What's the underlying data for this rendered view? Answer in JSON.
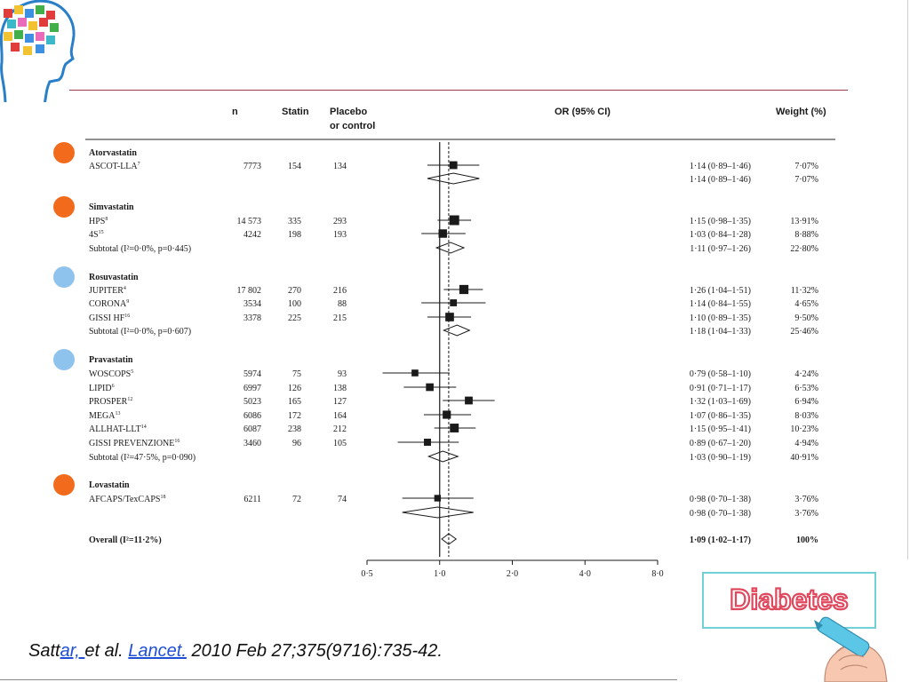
{
  "colors": {
    "bullet_orange": "#f26a1b",
    "bullet_blue": "#8ec3ee",
    "diabetes_pink": "#e0485e",
    "board_border": "#6fd0d8",
    "marker_cyan": "#5cc6e6",
    "rule": "#9b3b4d"
  },
  "icons": {
    "logo": "head-puzzle-icon",
    "diabetes": "diabetes-marker-illustration"
  },
  "citation": {
    "pre": "Satt",
    "link1": "ar, ",
    "mid": "et al. ",
    "link2": "Lancet.",
    "post": " 2010 Feb 27;375(9716):735-42."
  },
  "diabetes_label": "Diabetes",
  "chart_data": {
    "type": "forest",
    "columns": {
      "n": "n",
      "statin": "Statin",
      "placebo1": "Placebo",
      "placebo2": "or control",
      "or": "OR (95% CI)",
      "weight": "Weight (%)"
    },
    "x_axis": {
      "scale": "log",
      "ticks": [
        0.5,
        1.0,
        2.0,
        4.0,
        8.0
      ],
      "tick_labels": [
        "0·5",
        "1·0",
        "2·0",
        "4·0",
        "8·0"
      ],
      "reference": 1.0,
      "overall_dashed": 1.09
    },
    "rows": [
      {
        "type": "group",
        "label": "Atorvastatin",
        "bullet": "orange"
      },
      {
        "type": "study",
        "label": "ASCOT-LLA",
        "sup": "7",
        "n": "7773",
        "statin": "154",
        "placebo": "134",
        "or": 1.14,
        "lo": 0.89,
        "hi": 1.46,
        "ci": "1·14 (0·89–1·46)",
        "weight": "7·07%",
        "w": 7.07
      },
      {
        "type": "subtotal",
        "label": "",
        "or": 1.14,
        "lo": 0.89,
        "hi": 1.46,
        "ci": "1·14 (0·89–1·46)",
        "weight": "7·07%"
      },
      {
        "type": "group",
        "label": "Simvastatin",
        "bullet": "orange"
      },
      {
        "type": "study",
        "label": "HPS",
        "sup": "8",
        "n": "14 573",
        "statin": "335",
        "placebo": "293",
        "or": 1.15,
        "lo": 0.98,
        "hi": 1.35,
        "ci": "1·15 (0·98–1·35)",
        "weight": "13·91%",
        "w": 13.91
      },
      {
        "type": "study",
        "label": "4S",
        "sup": "15",
        "n": "4242",
        "statin": "198",
        "placebo": "193",
        "or": 1.03,
        "lo": 0.84,
        "hi": 1.28,
        "ci": "1·03 (0·84–1·28)",
        "weight": "8·88%",
        "w": 8.88
      },
      {
        "type": "subtotal",
        "label": "Subtotal (I²=0·0%, p=0·445)",
        "or": 1.11,
        "lo": 0.97,
        "hi": 1.26,
        "ci": "1·11 (0·97–1·26)",
        "weight": "22·80%"
      },
      {
        "type": "group",
        "label": "Rosuvastatin",
        "bullet": "blue"
      },
      {
        "type": "study",
        "label": "JUPITER",
        "sup": "4",
        "n": "17 802",
        "statin": "270",
        "placebo": "216",
        "or": 1.26,
        "lo": 1.04,
        "hi": 1.51,
        "ci": "1·26 (1·04–1·51)",
        "weight": "11·32%",
        "w": 11.32
      },
      {
        "type": "study",
        "label": "CORONA",
        "sup": "9",
        "n": "3534",
        "statin": "100",
        "placebo": "88",
        "or": 1.14,
        "lo": 0.84,
        "hi": 1.55,
        "ci": "1·14 (0·84–1·55)",
        "weight": "4·65%",
        "w": 4.65
      },
      {
        "type": "study",
        "label": "GISSI HF",
        "sup": "16",
        "n": "3378",
        "statin": "225",
        "placebo": "215",
        "or": 1.1,
        "lo": 0.89,
        "hi": 1.35,
        "ci": "1·10 (0·89–1·35)",
        "weight": "9·50%",
        "w": 9.5
      },
      {
        "type": "subtotal",
        "label": "Subtotal (I²=0·0%, p=0·607)",
        "or": 1.18,
        "lo": 1.04,
        "hi": 1.33,
        "ci": "1·18 (1·04–1·33)",
        "weight": "25·46%"
      },
      {
        "type": "group",
        "label": "Pravastatin",
        "bullet": "blue"
      },
      {
        "type": "study",
        "label": "WOSCOPS",
        "sup": "5",
        "n": "5974",
        "statin": "75",
        "placebo": "93",
        "or": 0.79,
        "lo": 0.58,
        "hi": 1.1,
        "ci": "0·79 (0·58–1·10)",
        "weight": "4·24%",
        "w": 4.24
      },
      {
        "type": "study",
        "label": "LIPID",
        "sup": "6",
        "n": "6997",
        "statin": "126",
        "placebo": "138",
        "or": 0.91,
        "lo": 0.71,
        "hi": 1.17,
        "ci": "0·91 (0·71–1·17)",
        "weight": "6·53%",
        "w": 6.53
      },
      {
        "type": "study",
        "label": "PROSPER",
        "sup": "12",
        "n": "5023",
        "statin": "165",
        "placebo": "127",
        "or": 1.32,
        "lo": 1.03,
        "hi": 1.69,
        "ci": "1·32 (1·03–1·69)",
        "weight": "6·94%",
        "w": 6.94
      },
      {
        "type": "study",
        "label": "MEGA",
        "sup": "13",
        "n": "6086",
        "statin": "172",
        "placebo": "164",
        "or": 1.07,
        "lo": 0.86,
        "hi": 1.35,
        "ci": "1·07 (0·86–1·35)",
        "weight": "8·03%",
        "w": 8.03
      },
      {
        "type": "study",
        "label": "ALLHAT-LLT",
        "sup": "14",
        "n": "6087",
        "statin": "238",
        "placebo": "212",
        "or": 1.15,
        "lo": 0.95,
        "hi": 1.41,
        "ci": "1·15 (0·95–1·41)",
        "weight": "10·23%",
        "w": 10.23
      },
      {
        "type": "study",
        "label": "GISSI PREVENZIONE",
        "sup": "16",
        "n": "3460",
        "statin": "96",
        "placebo": "105",
        "or": 0.89,
        "lo": 0.67,
        "hi": 1.2,
        "ci": "0·89 (0·67–1·20)",
        "weight": "4·94%",
        "w": 4.94
      },
      {
        "type": "subtotal",
        "label": "Subtotal (I²=47·5%, p=0·090)",
        "or": 1.03,
        "lo": 0.9,
        "hi": 1.19,
        "ci": "1·03 (0·90–1·19)",
        "weight": "40·91%"
      },
      {
        "type": "group",
        "label": "Lovastatin",
        "bullet": "orange"
      },
      {
        "type": "study",
        "label": "AFCAPS/TexCAPS",
        "sup": "18",
        "n": "6211",
        "statin": "72",
        "placebo": "74",
        "or": 0.98,
        "lo": 0.7,
        "hi": 1.38,
        "ci": "0·98 (0·70–1·38)",
        "weight": "3·76%",
        "w": 3.76
      },
      {
        "type": "subtotal",
        "label": "",
        "or": 0.98,
        "lo": 0.7,
        "hi": 1.38,
        "ci": "0·98 (0·70–1·38)",
        "weight": "3·76%"
      },
      {
        "type": "overall",
        "label": "Overall (I²=11·2%)",
        "or": 1.09,
        "lo": 1.02,
        "hi": 1.17,
        "ci": "1·09 (1·02–1·17)",
        "weight": "100%"
      }
    ]
  }
}
